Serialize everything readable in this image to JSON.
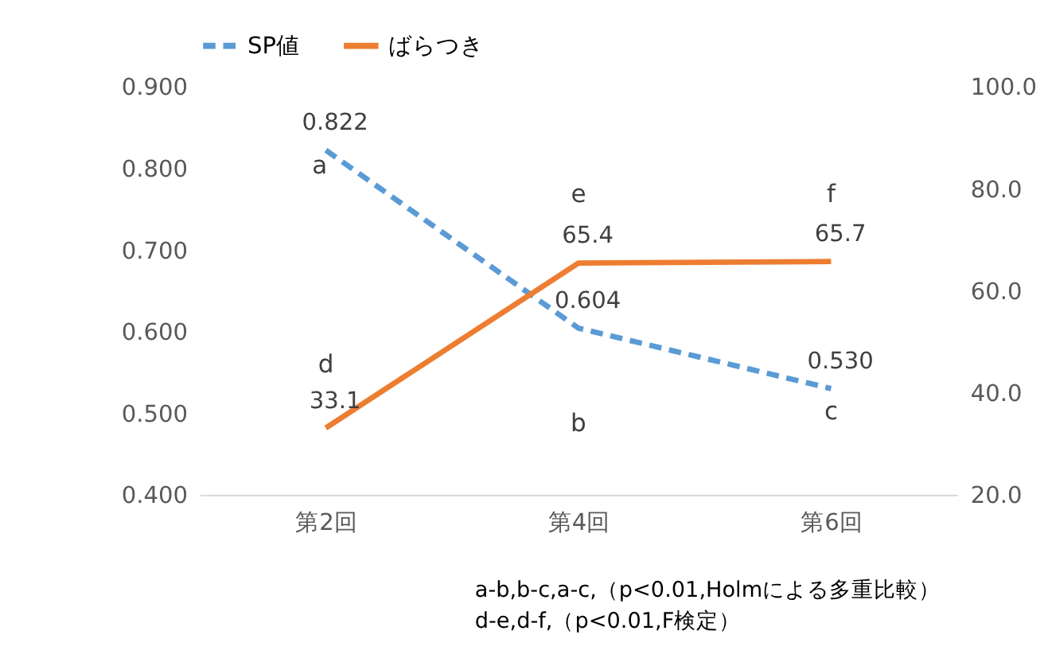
{
  "chart_data": {
    "type": "line",
    "categories": [
      "第2回",
      "第4回",
      "第6回"
    ],
    "series": [
      {
        "name": "SP値",
        "color": "#5b9bd5",
        "line_style": "dashed",
        "values": [
          0.822,
          0.604,
          0.53
        ],
        "value_labels": [
          "0.822",
          "0.604",
          "0.530"
        ]
      },
      {
        "name": "ばらつき",
        "color": "#ed7d31",
        "line_style": "solid",
        "axis": "y2",
        "values": [
          33.1,
          65.4,
          65.7
        ],
        "value_labels": [
          "33.1",
          "65.4",
          "65.7"
        ]
      }
    ],
    "ylim": [
      0.4,
      0.9
    ],
    "yticks": [
      {
        "value": 0.4,
        "label": "0.400"
      },
      {
        "value": 0.5,
        "label": "0.500"
      },
      {
        "value": 0.6,
        "label": "0.600"
      },
      {
        "value": 0.7,
        "label": "0.700"
      },
      {
        "value": 0.8,
        "label": "0.800"
      },
      {
        "value": 0.9,
        "label": "0.900"
      }
    ],
    "y2lim": [
      20,
      100
    ],
    "y2ticks": [
      {
        "value": 20,
        "label": "20.0"
      },
      {
        "value": 40,
        "label": "40.0"
      },
      {
        "value": 60,
        "label": "60.0"
      },
      {
        "value": 80,
        "label": "80.0"
      },
      {
        "value": 100,
        "label": "100.0"
      }
    ],
    "grid": false,
    "legend": "top",
    "marker": "none",
    "annotations": [
      "a",
      "b",
      "c",
      "d",
      "e",
      "f",
      "a-b,b-c,a-c,（p<0.01,Holmによる多重比較）",
      "d-e,d-f,（p<0.01,F検定）"
    ]
  }
}
